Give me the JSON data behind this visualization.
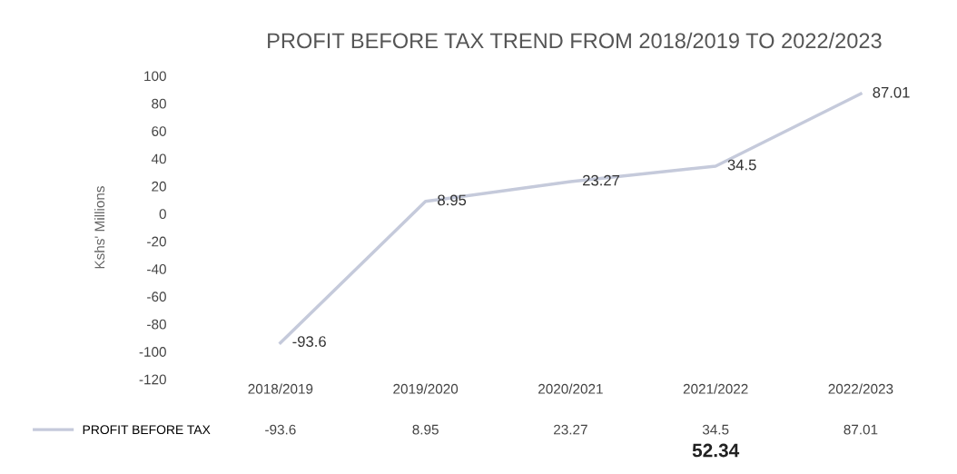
{
  "chart_data": {
    "type": "line",
    "title": "PROFIT BEFORE TAX TREND FROM 2018/2019 TO 2022/2023",
    "ylabel": "Kshs' Millions",
    "categories": [
      "2018/2019",
      "2019/2020",
      "2020/2021",
      "2021/2022",
      "2022/2023"
    ],
    "series": [
      {
        "name": "PROFIT BEFORE TAX",
        "color": "#c5cadb",
        "values": [
          -93.6,
          8.95,
          23.27,
          34.5,
          87.01
        ],
        "value_labels": [
          "-93.6",
          "8.95",
          "23.27",
          "34.5",
          "87.01"
        ]
      }
    ],
    "ylim": [
      -120,
      100
    ],
    "yticks": [
      -120,
      -100,
      -80,
      -60,
      -40,
      -20,
      0,
      20,
      40,
      60,
      80,
      100
    ],
    "grid": false,
    "legend": "bottom left",
    "marker": "none",
    "line_style": "solid",
    "annotations": [
      "-93.6",
      "8.95",
      "23.27",
      "34.5",
      "87.01",
      "52.34"
    ]
  }
}
